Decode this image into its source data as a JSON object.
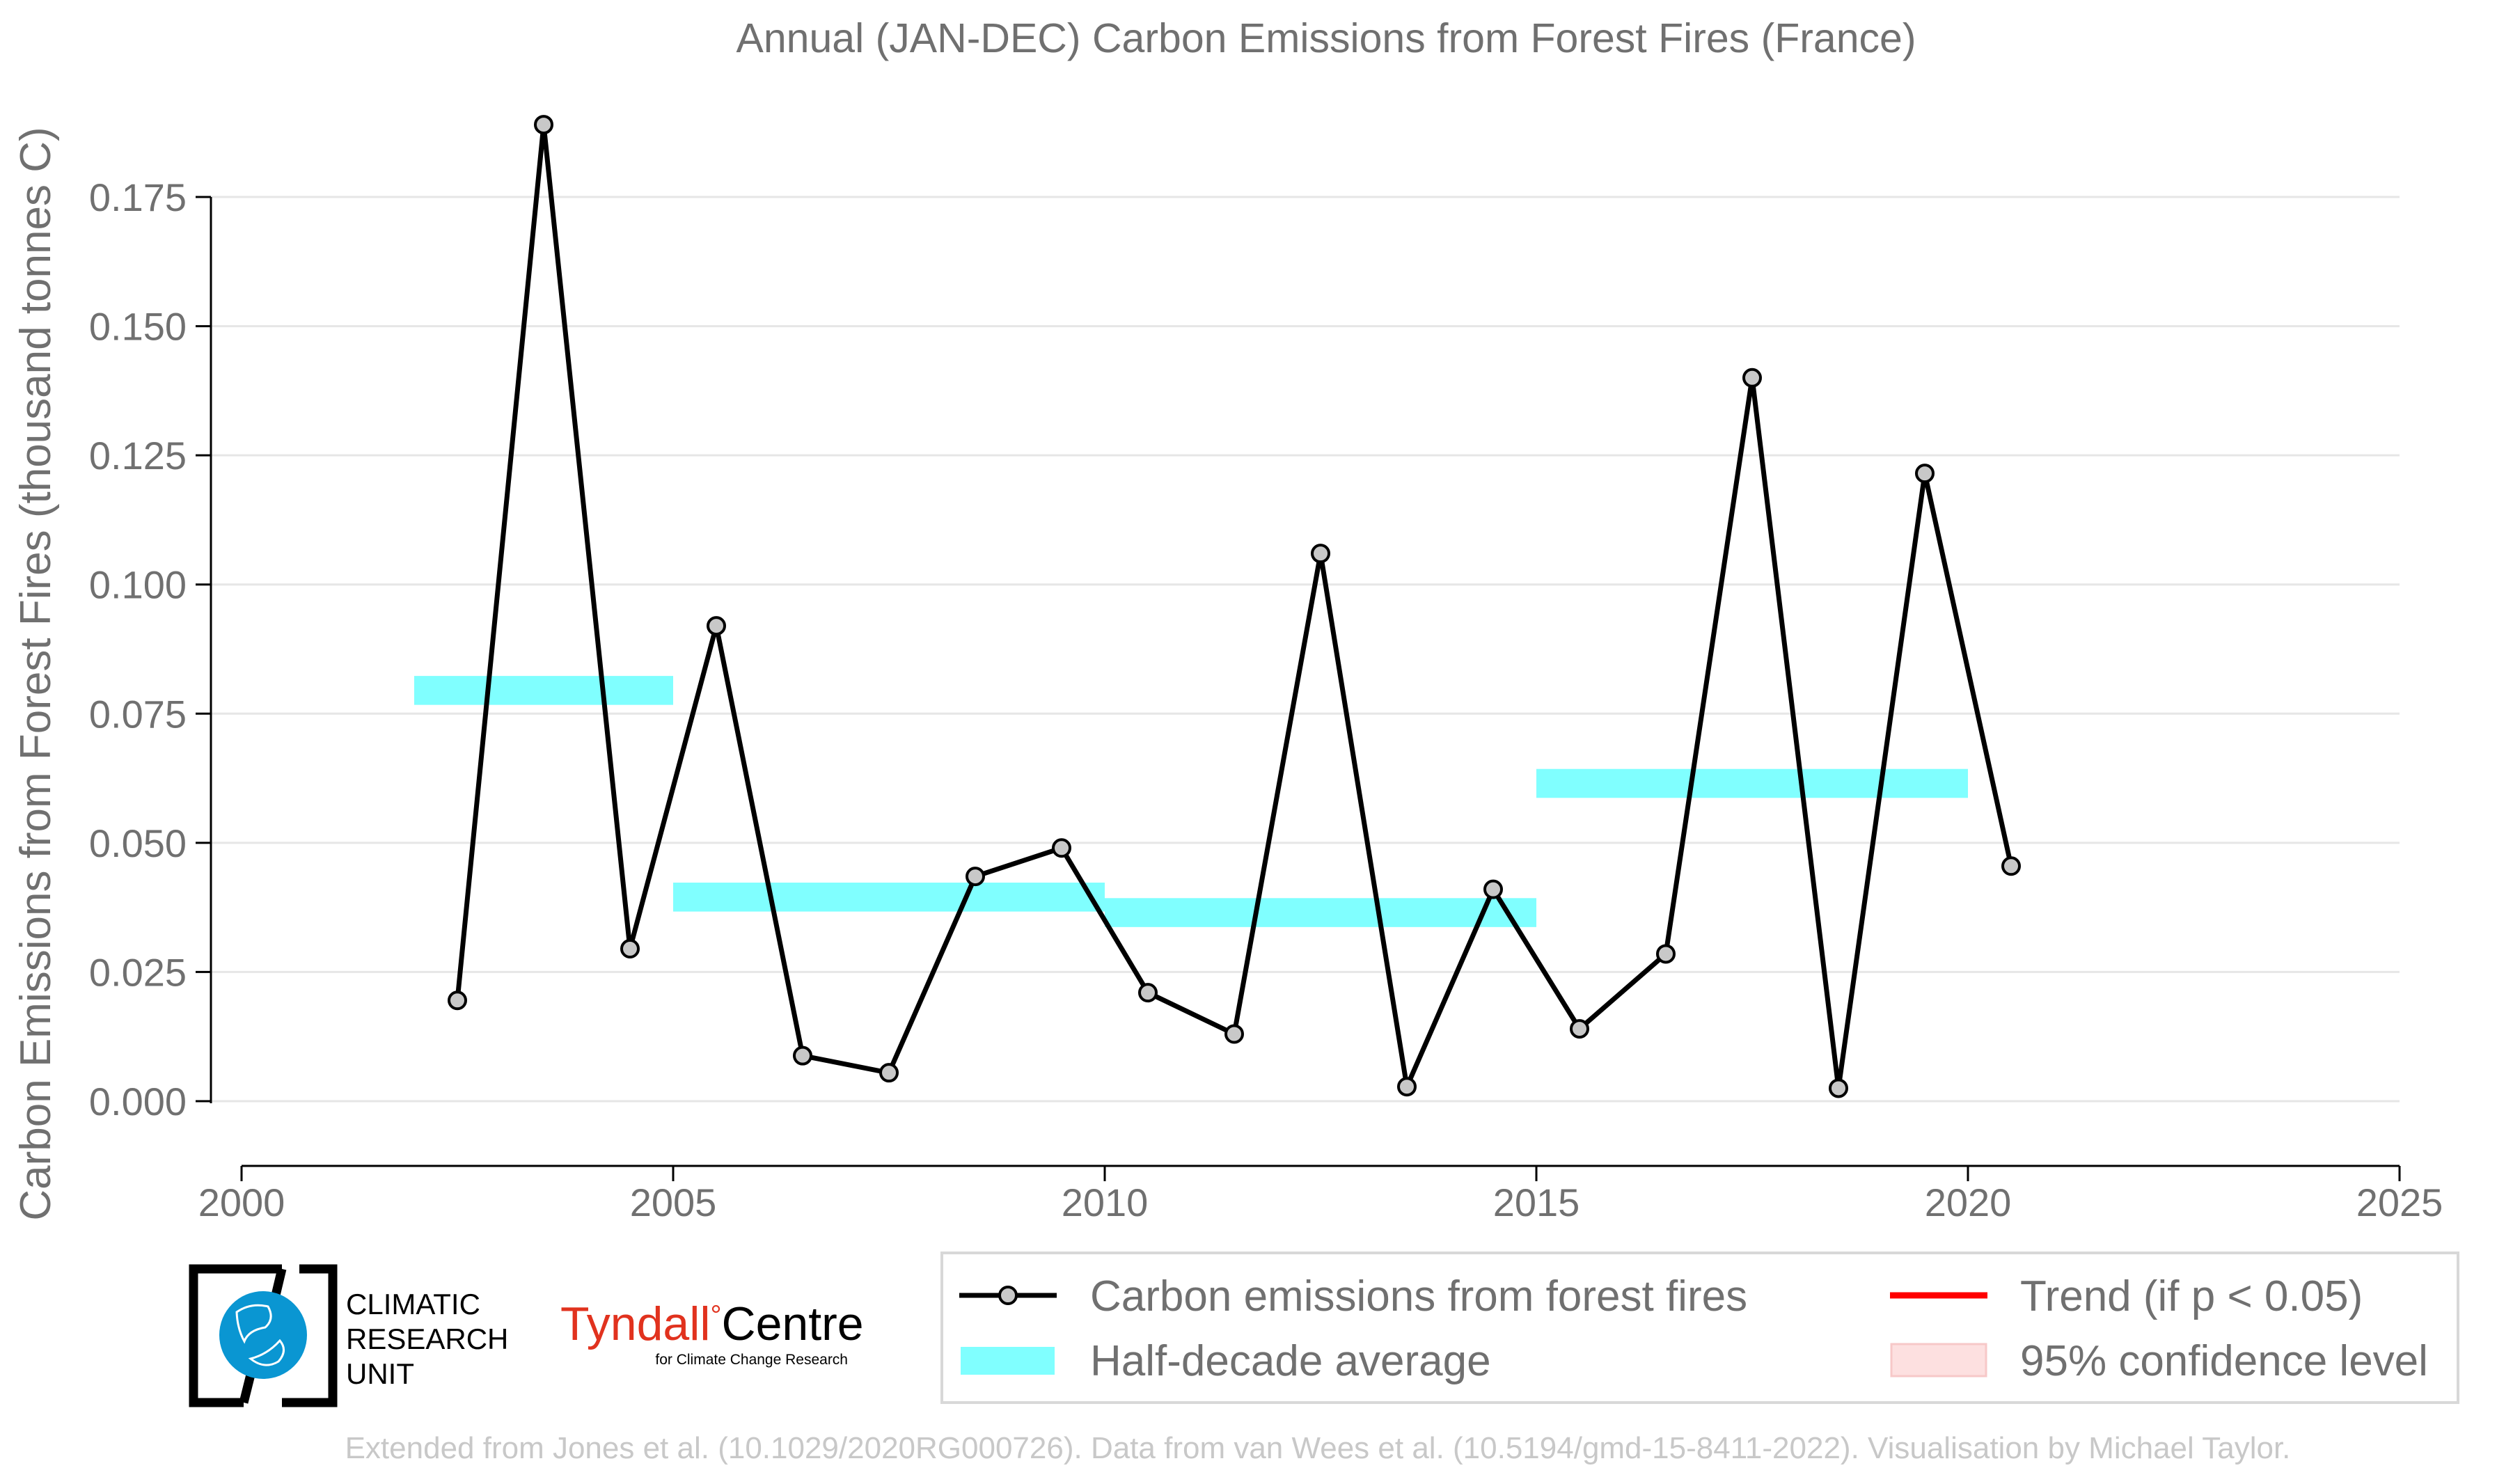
{
  "chart_data": {
    "type": "line",
    "title": "Annual (JAN-DEC) Carbon Emissions from Forest Fires (France)",
    "ylabel": "Carbon Emissions from Forest Fires (thousand tonnes C)",
    "xlabel": "",
    "xlim": [
      2000,
      2025
    ],
    "ylim": [
      -0.012,
      0.195
    ],
    "x_ticks": [
      2000,
      2005,
      2010,
      2015,
      2020,
      2025
    ],
    "y_ticks": [
      "0.000",
      "0.025",
      "0.050",
      "0.075",
      "0.100",
      "0.125",
      "0.150",
      "0.175"
    ],
    "grid": "horizontal",
    "series": [
      {
        "name": "Carbon emissions from forest fires",
        "color": "#000000",
        "marker_fill": "#c8c8c8",
        "x": [
          2002.5,
          2003.5,
          2004.5,
          2005.5,
          2006.5,
          2007.5,
          2008.5,
          2009.5,
          2010.5,
          2011.5,
          2012.5,
          2013.5,
          2014.5,
          2015.5,
          2016.5,
          2017.5,
          2018.5,
          2019.5,
          2020.5
        ],
        "y": [
          0.0195,
          0.189,
          0.0295,
          0.092,
          0.0088,
          0.0055,
          0.0435,
          0.049,
          0.021,
          0.013,
          0.106,
          0.0028,
          0.041,
          0.014,
          0.0285,
          0.14,
          0.0025,
          0.1215,
          0.0455
        ]
      }
    ],
    "half_decade_average": {
      "name": "Half-decade average",
      "color": "#80ffff",
      "segments": [
        {
          "x0": 2002,
          "x1": 2005,
          "y": 0.0795
        },
        {
          "x0": 2005,
          "x1": 2010,
          "y": 0.0395
        },
        {
          "x0": 2010,
          "x1": 2015,
          "y": 0.0365
        },
        {
          "x0": 2015,
          "x1": 2020,
          "y": 0.0615
        }
      ]
    },
    "legend": {
      "placement": "bottom-right",
      "items": [
        {
          "label": "Carbon emissions from forest fires",
          "kind": "line-marker",
          "color": "#000000"
        },
        {
          "label": "Trend (if p < 0.05)",
          "kind": "line",
          "color": "#ff0000"
        },
        {
          "label": "Half-decade average",
          "kind": "band",
          "color": "#80ffff"
        },
        {
          "label": "95% confidence level",
          "kind": "band",
          "color": "#fde0e0"
        }
      ]
    }
  },
  "logos": {
    "cru": {
      "line1": "CLIMATIC",
      "line2": "RESEARCH",
      "line3": "UNIT",
      "icon": "globe-icon",
      "color": "#0a96d2"
    },
    "tyndall": {
      "name": "Tyndall",
      "degree": "°",
      "name2": "Centre",
      "subtitle": "for Climate Change Research",
      "color": "#e1321e"
    }
  },
  "footer": "Extended from Jones et al. (10.1029/2020RG000726). Data from van Wees et al. (10.5194/gmd-15-8411-2022). Visualisation by Michael Taylor."
}
